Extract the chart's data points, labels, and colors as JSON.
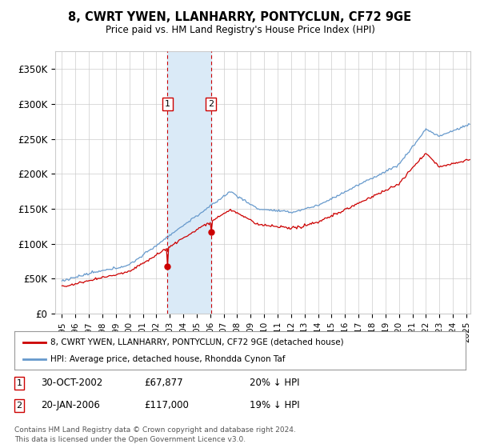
{
  "title": "8, CWRT YWEN, LLANHARRY, PONTYCLUN, CF72 9GE",
  "subtitle": "Price paid vs. HM Land Registry's House Price Index (HPI)",
  "yticks": [
    0,
    50000,
    100000,
    150000,
    200000,
    250000,
    300000,
    350000
  ],
  "ytick_labels": [
    "£0",
    "£50K",
    "£100K",
    "£150K",
    "£200K",
    "£250K",
    "£300K",
    "£350K"
  ],
  "ylim": [
    0,
    375000
  ],
  "xlim_start": 1994.5,
  "xlim_end": 2025.3,
  "transaction1_x": 2002.83,
  "transaction1_y": 67877,
  "transaction2_x": 2006.05,
  "transaction2_y": 117000,
  "red_line_color": "#cc0000",
  "blue_line_color": "#6699cc",
  "shade_color": "#daeaf7",
  "grid_color": "#cccccc",
  "legend_entry1": "8, CWRT YWEN, LLANHARRY, PONTYCLUN, CF72 9GE (detached house)",
  "legend_entry2": "HPI: Average price, detached house, Rhondda Cynon Taf",
  "transaction1_date": "30-OCT-2002",
  "transaction1_price": "£67,877",
  "transaction1_hpi": "20% ↓ HPI",
  "transaction2_date": "20-JAN-2006",
  "transaction2_price": "£117,000",
  "transaction2_hpi": "19% ↓ HPI",
  "footer1": "Contains HM Land Registry data © Crown copyright and database right 2024.",
  "footer2": "This data is licensed under the Open Government Licence v3.0.",
  "marker_box_color": "#cc0000",
  "background_color": "#ffffff"
}
